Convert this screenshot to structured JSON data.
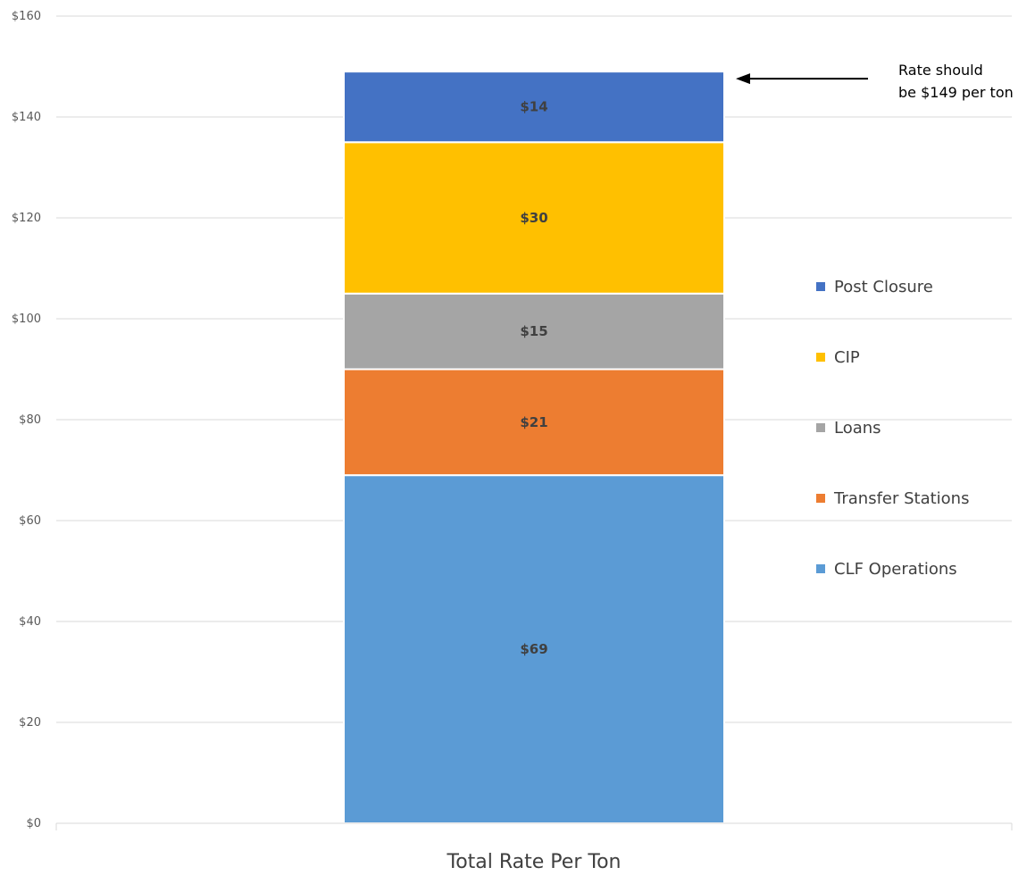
{
  "chart_data": {
    "type": "bar",
    "stacked": true,
    "categories": [
      "Total Rate Per Ton"
    ],
    "series": [
      {
        "name": "CLF Operations",
        "values": [
          69
        ],
        "label": "$69",
        "color": "#5B9BD5"
      },
      {
        "name": "Transfer Stations",
        "values": [
          21
        ],
        "label": "$21",
        "color": "#ED7D31"
      },
      {
        "name": "Loans",
        "values": [
          15
        ],
        "label": "$15",
        "color": "#A5A5A5"
      },
      {
        "name": "CIP",
        "values": [
          30
        ],
        "label": "$30",
        "color": "#FFC000"
      },
      {
        "name": "Post Closure",
        "values": [
          14
        ],
        "label": "$14",
        "color": "#4472C4"
      }
    ],
    "ylim": [
      0,
      160
    ],
    "yticks": [
      {
        "value": 0,
        "label": "$0"
      },
      {
        "value": 20,
        "label": "$20"
      },
      {
        "value": 40,
        "label": "$40"
      },
      {
        "value": 60,
        "label": "$60"
      },
      {
        "value": 80,
        "label": "$80"
      },
      {
        "value": 100,
        "label": "$100"
      },
      {
        "value": 120,
        "label": "$120"
      },
      {
        "value": 140,
        "label": "$140"
      },
      {
        "value": 160,
        "label": "$160"
      }
    ],
    "grid": true,
    "legend": {
      "position": "right",
      "order": [
        "Post Closure",
        "CIP",
        "Loans",
        "Transfer Stations",
        "CLF Operations"
      ]
    },
    "annotation": {
      "lines": [
        "Rate should",
        "be $149 per ton"
      ],
      "points_to_value": 149
    }
  }
}
